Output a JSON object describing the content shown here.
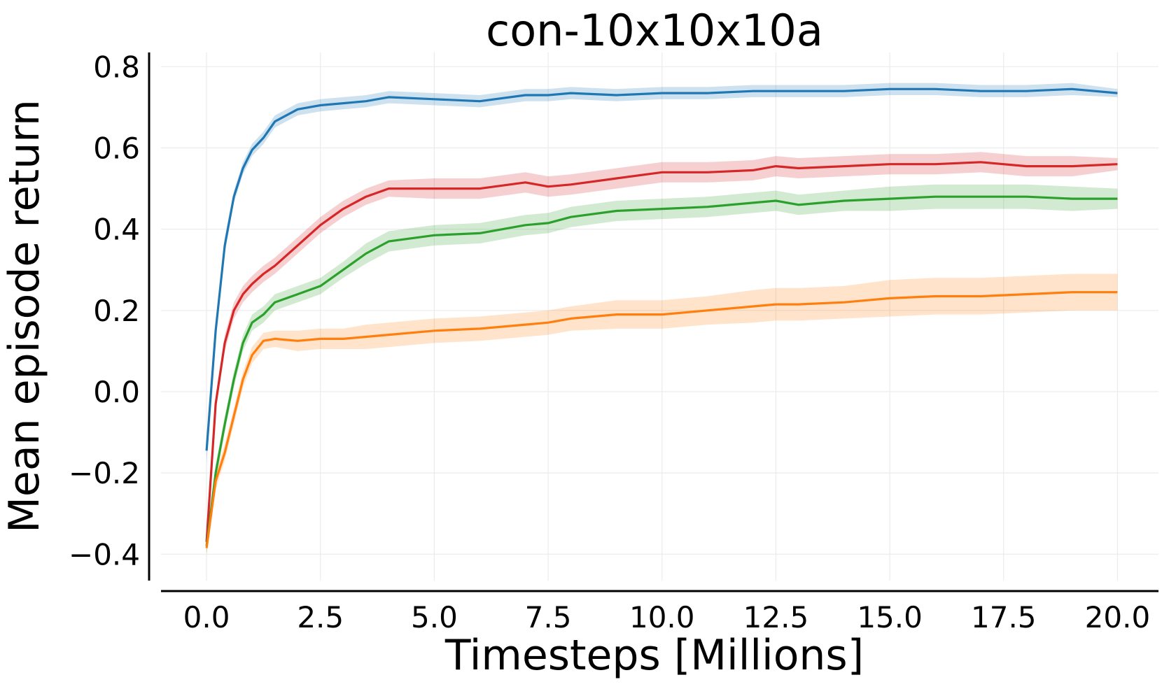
{
  "chart_data": {
    "type": "line",
    "title": "con-10x10x10a",
    "xlabel": "Timesteps [Millions]",
    "ylabel": "Mean episode return",
    "xlim": [
      -1.0,
      20.9
    ],
    "ylim": [
      -0.465,
      0.835
    ],
    "xticks": [
      0.0,
      2.5,
      5.0,
      7.5,
      10.0,
      12.5,
      15.0,
      17.5,
      20.0
    ],
    "xtick_labels": [
      "0.0",
      "2.5",
      "5.0",
      "7.5",
      "10.0",
      "12.5",
      "15.0",
      "17.5",
      "20.0"
    ],
    "yticks": [
      -0.4,
      -0.2,
      0.0,
      0.2,
      0.4,
      0.6,
      0.8
    ],
    "ytick_labels": [
      "−0.4",
      "−0.2",
      "0.0",
      "0.2",
      "0.4",
      "0.6",
      "0.8"
    ],
    "grid": true,
    "legend": "none",
    "colors": {
      "blue": "#1f77b4",
      "red": "#d62728",
      "green": "#2ca02c",
      "orange": "#ff7f0e"
    },
    "x": [
      0.0,
      0.2,
      0.4,
      0.6,
      0.8,
      1.0,
      1.25,
      1.5,
      2.0,
      2.5,
      3.0,
      3.5,
      4.0,
      5.0,
      6.0,
      7.0,
      7.5,
      8.0,
      9.0,
      10.0,
      11.0,
      12.0,
      12.5,
      13.0,
      14.0,
      15.0,
      16.0,
      17.0,
      18.0,
      19.0,
      20.0
    ],
    "series": [
      {
        "color": "blue",
        "values": [
          -0.145,
          0.15,
          0.36,
          0.48,
          0.55,
          0.595,
          0.625,
          0.665,
          0.695,
          0.705,
          0.71,
          0.715,
          0.725,
          0.72,
          0.715,
          0.73,
          0.73,
          0.735,
          0.73,
          0.735,
          0.735,
          0.74,
          0.74,
          0.74,
          0.74,
          0.745,
          0.745,
          0.74,
          0.74,
          0.745,
          0.735
        ],
        "lower": [
          -0.175,
          0.13,
          0.34,
          0.465,
          0.535,
          0.58,
          0.61,
          0.65,
          0.68,
          0.69,
          0.695,
          0.7,
          0.71,
          0.705,
          0.7,
          0.715,
          0.715,
          0.72,
          0.715,
          0.72,
          0.72,
          0.725,
          0.725,
          0.725,
          0.725,
          0.73,
          0.73,
          0.725,
          0.725,
          0.73,
          0.725
        ],
        "upper": [
          -0.12,
          0.17,
          0.38,
          0.495,
          0.565,
          0.61,
          0.64,
          0.68,
          0.71,
          0.72,
          0.725,
          0.73,
          0.74,
          0.735,
          0.73,
          0.745,
          0.745,
          0.75,
          0.745,
          0.75,
          0.75,
          0.755,
          0.755,
          0.755,
          0.755,
          0.76,
          0.76,
          0.755,
          0.755,
          0.76,
          0.745
        ]
      },
      {
        "color": "red",
        "values": [
          -0.37,
          -0.03,
          0.12,
          0.2,
          0.24,
          0.265,
          0.29,
          0.31,
          0.36,
          0.41,
          0.45,
          0.48,
          0.5,
          0.5,
          0.5,
          0.515,
          0.505,
          0.51,
          0.525,
          0.54,
          0.54,
          0.545,
          0.555,
          0.55,
          0.555,
          0.56,
          0.56,
          0.565,
          0.555,
          0.555,
          0.56
        ],
        "lower": [
          -0.39,
          -0.05,
          0.1,
          0.18,
          0.22,
          0.245,
          0.27,
          0.29,
          0.34,
          0.39,
          0.43,
          0.46,
          0.48,
          0.475,
          0.475,
          0.49,
          0.48,
          0.485,
          0.5,
          0.515,
          0.515,
          0.52,
          0.53,
          0.525,
          0.53,
          0.535,
          0.535,
          0.54,
          0.53,
          0.53,
          0.545
        ],
        "upper": [
          -0.35,
          -0.01,
          0.14,
          0.22,
          0.26,
          0.285,
          0.31,
          0.33,
          0.38,
          0.43,
          0.47,
          0.5,
          0.52,
          0.525,
          0.525,
          0.54,
          0.53,
          0.535,
          0.55,
          0.565,
          0.565,
          0.57,
          0.58,
          0.575,
          0.58,
          0.585,
          0.585,
          0.59,
          0.58,
          0.58,
          0.575
        ]
      },
      {
        "color": "green",
        "values": [
          -0.38,
          -0.2,
          -0.08,
          0.03,
          0.12,
          0.17,
          0.19,
          0.22,
          0.24,
          0.26,
          0.3,
          0.34,
          0.37,
          0.385,
          0.39,
          0.41,
          0.415,
          0.43,
          0.445,
          0.45,
          0.455,
          0.465,
          0.47,
          0.46,
          0.47,
          0.475,
          0.48,
          0.48,
          0.48,
          0.475,
          0.475
        ],
        "lower": [
          -0.4,
          -0.22,
          -0.1,
          0.01,
          0.1,
          0.15,
          0.17,
          0.2,
          0.22,
          0.24,
          0.28,
          0.315,
          0.345,
          0.36,
          0.365,
          0.385,
          0.39,
          0.405,
          0.42,
          0.425,
          0.43,
          0.44,
          0.445,
          0.435,
          0.445,
          0.445,
          0.45,
          0.45,
          0.45,
          0.445,
          0.45
        ],
        "upper": [
          -0.36,
          -0.18,
          -0.06,
          0.05,
          0.14,
          0.19,
          0.21,
          0.24,
          0.26,
          0.28,
          0.32,
          0.365,
          0.395,
          0.41,
          0.415,
          0.435,
          0.44,
          0.455,
          0.47,
          0.475,
          0.48,
          0.49,
          0.495,
          0.485,
          0.495,
          0.505,
          0.51,
          0.51,
          0.51,
          0.505,
          0.5
        ]
      },
      {
        "color": "orange",
        "values": [
          -0.385,
          -0.22,
          -0.15,
          -0.06,
          0.03,
          0.09,
          0.125,
          0.13,
          0.125,
          0.13,
          0.13,
          0.135,
          0.14,
          0.15,
          0.155,
          0.165,
          0.17,
          0.18,
          0.19,
          0.19,
          0.2,
          0.21,
          0.215,
          0.215,
          0.22,
          0.23,
          0.235,
          0.235,
          0.24,
          0.245,
          0.245
        ],
        "lower": [
          -0.4,
          -0.24,
          -0.17,
          -0.08,
          0.01,
          0.07,
          0.105,
          0.11,
          0.1,
          0.105,
          0.105,
          0.105,
          0.11,
          0.12,
          0.125,
          0.135,
          0.14,
          0.15,
          0.155,
          0.155,
          0.165,
          0.17,
          0.175,
          0.175,
          0.18,
          0.185,
          0.19,
          0.19,
          0.195,
          0.2,
          0.2
        ],
        "upper": [
          -0.37,
          -0.2,
          -0.13,
          -0.04,
          0.05,
          0.11,
          0.145,
          0.15,
          0.15,
          0.155,
          0.155,
          0.165,
          0.17,
          0.18,
          0.185,
          0.195,
          0.2,
          0.21,
          0.225,
          0.225,
          0.235,
          0.25,
          0.255,
          0.255,
          0.26,
          0.275,
          0.28,
          0.28,
          0.285,
          0.29,
          0.29
        ]
      }
    ]
  }
}
